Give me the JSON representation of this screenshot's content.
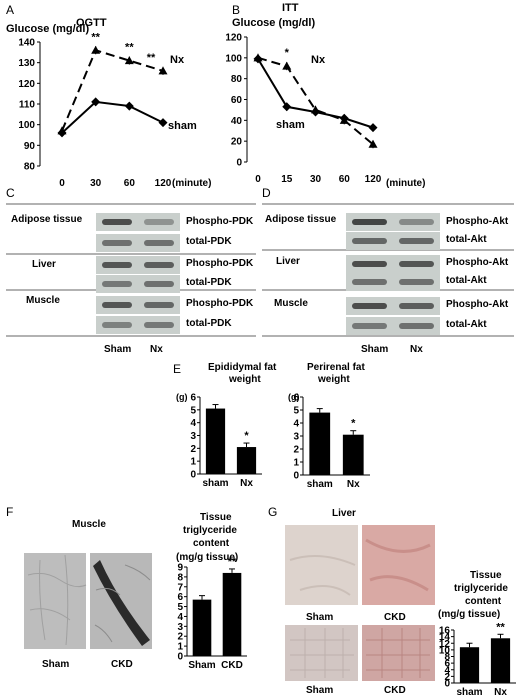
{
  "panels": {
    "A": {
      "letter": "A",
      "title": "OGTT",
      "ylabel": "Glucose (mg/dl)",
      "xticks": [
        "0",
        "30",
        "60",
        "120"
      ],
      "xunit": "(minute)",
      "yticks": [
        "80",
        "90",
        "100",
        "110",
        "120",
        "130",
        "140"
      ],
      "nx_label": "Nx",
      "sham_label": "sham",
      "stars": [
        "**",
        "**",
        "**"
      ]
    },
    "B": {
      "letter": "B",
      "title": "ITT",
      "ylabel": "Glucose (mg/dl)",
      "xticks": [
        "0",
        "15",
        "30",
        "60",
        "120"
      ],
      "xunit": "(minute)",
      "yticks": [
        "0",
        "20",
        "40",
        "60",
        "80",
        "100",
        "120"
      ],
      "nx_label": "Nx",
      "sham_label": "sham",
      "stars": [
        "*"
      ]
    },
    "C": {
      "letter": "C",
      "rows": [
        "Adipose tissue",
        "Liver",
        "Muscle"
      ],
      "bands": [
        "Phospho-PDK",
        "total-PDK",
        "Phospho-PDK",
        "total-PDK",
        "Phospho-PDK",
        "total-PDK"
      ],
      "cols": [
        "Sham",
        "Nx"
      ]
    },
    "D": {
      "letter": "D",
      "rows": [
        "Adipose tissue",
        "Liver",
        "Muscle"
      ],
      "bands": [
        "Phospho-Akt",
        "total-Akt",
        "Phospho-Akt",
        "total-Akt",
        "Phospho-Akt",
        "total-Akt"
      ],
      "cols": [
        "Sham",
        "Nx"
      ]
    },
    "E": {
      "letter": "E",
      "title1": "Epididymal fat",
      "title2": "weight",
      "title3": "Perirenal fat",
      "title4": "weight",
      "unit1": "(g)",
      "unit2": "(g)",
      "yticks": [
        "0",
        "1",
        "2",
        "3",
        "4",
        "5",
        "6"
      ],
      "star": "*"
    },
    "F": {
      "letter": "F",
      "title": "Muscle",
      "cap1": "Sham",
      "cap2": "CKD",
      "ctitle1": "Tissue",
      "ctitle2": "triglyceride",
      "ctitle3": "content",
      "ctitle4": "(mg/g tissue)",
      "yticks": [
        "0",
        "1",
        "2",
        "3",
        "4",
        "5",
        "6",
        "7",
        "8",
        "9"
      ],
      "star": "**"
    },
    "G": {
      "letter": "G",
      "title": "Liver",
      "cap1": "Sham",
      "cap2": "CKD",
      "cap3": "Sham",
      "cap4": "CKD",
      "ctitle1": "Tissue",
      "ctitle2": "triglyceride",
      "ctitle3": "content",
      "ctitle4": "(mg/g tissue)",
      "yticks": [
        "0",
        "2",
        "4",
        "6",
        "8",
        "10",
        "12",
        "14",
        "16"
      ],
      "star": "**"
    }
  },
  "chart_data": [
    {
      "type": "line",
      "panel": "A",
      "x": [
        0,
        30,
        60,
        120
      ],
      "ylim": [
        80,
        140
      ],
      "series": [
        {
          "name": "Nx",
          "values": [
            97,
            136,
            131,
            126
          ]
        },
        {
          "name": "sham",
          "values": [
            96,
            111,
            109,
            101
          ]
        }
      ]
    },
    {
      "type": "line",
      "panel": "B",
      "x": [
        0,
        15,
        30,
        60,
        120
      ],
      "ylim": [
        0,
        120
      ],
      "series": [
        {
          "name": "Nx",
          "values": [
            100,
            92,
            50,
            40,
            17
          ]
        },
        {
          "name": "sham",
          "values": [
            99,
            53,
            48,
            42,
            33
          ]
        }
      ]
    },
    {
      "type": "bar",
      "panel": "E-epididymal",
      "categories": [
        "sham",
        "Nx"
      ],
      "values": [
        5.1,
        2.1
      ],
      "ylim": [
        0,
        6
      ]
    },
    {
      "type": "bar",
      "panel": "E-perirenal",
      "categories": [
        "sham",
        "Nx"
      ],
      "values": [
        4.8,
        3.1
      ],
      "ylim": [
        0,
        6
      ]
    },
    {
      "type": "bar",
      "panel": "F",
      "categories": [
        "Sham",
        "CKD"
      ],
      "values": [
        5.7,
        8.4
      ],
      "ylim": [
        0,
        9
      ]
    },
    {
      "type": "bar",
      "panel": "G",
      "categories": [
        "sham",
        "Nx"
      ],
      "values": [
        10.8,
        13.5
      ],
      "ylim": [
        0,
        16
      ]
    }
  ]
}
